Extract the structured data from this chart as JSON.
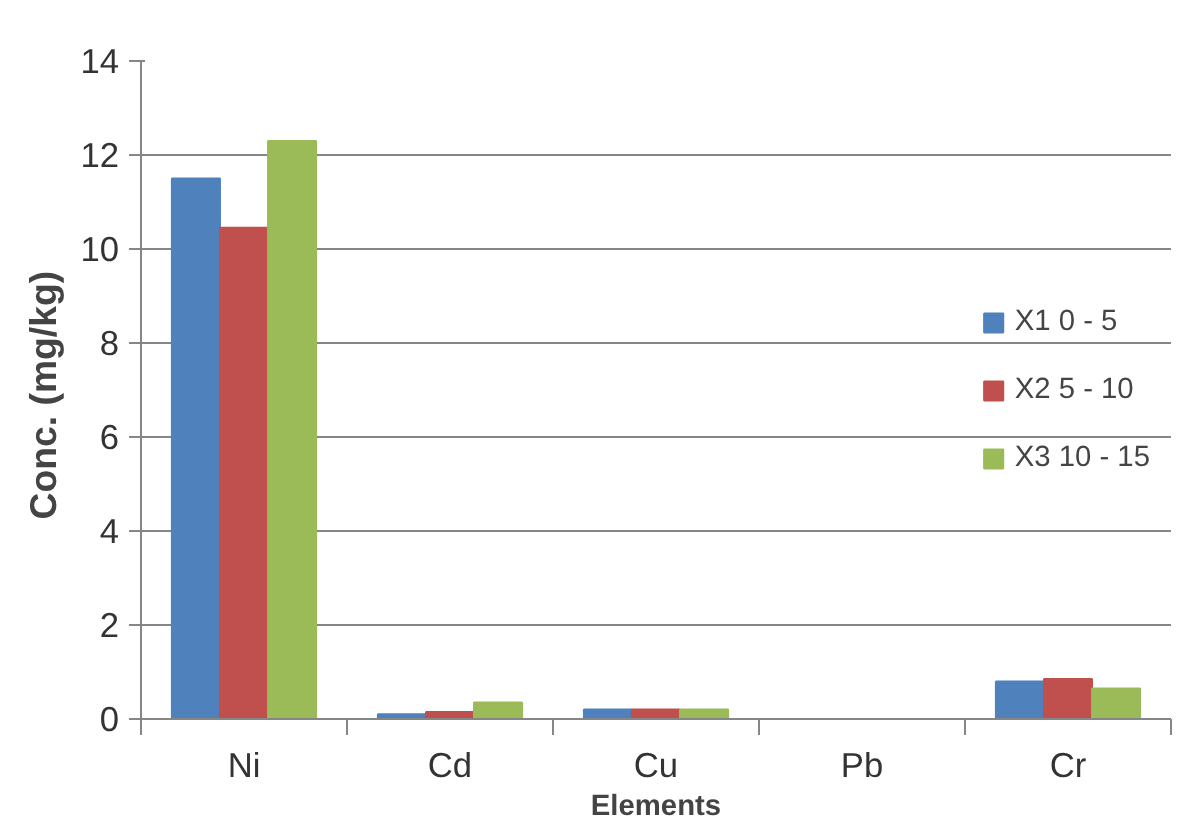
{
  "chart_data": {
    "type": "bar",
    "xlabel": "Elements",
    "ylabel": "Conc.  (mg/kg)",
    "categories": [
      "Ni",
      "Cd",
      "Cu",
      "Pb",
      "Cr"
    ],
    "series": [
      {
        "name": "X1 0 - 5",
        "color": "#4f81bd",
        "values": [
          11.5,
          0.1,
          0.2,
          0,
          0.8
        ]
      },
      {
        "name": "X2 5 - 10",
        "color": "#c0504d",
        "values": [
          10.45,
          0.15,
          0.2,
          0,
          0.85
        ]
      },
      {
        "name": "X3 10 - 15",
        "color": "#9bbb59",
        "values": [
          12.3,
          0.35,
          0.2,
          0,
          0.65
        ]
      }
    ],
    "ylim": [
      0,
      14
    ],
    "yticks": [
      0,
      2,
      4,
      6,
      8,
      10,
      12,
      14
    ],
    "grid": "y",
    "legend": "right"
  }
}
